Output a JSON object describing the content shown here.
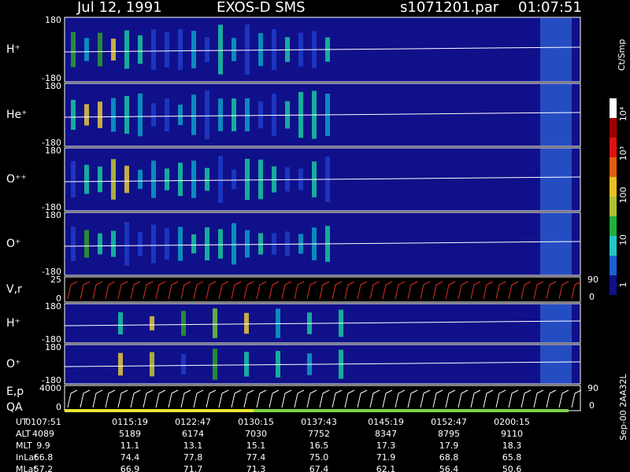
{
  "header": {
    "date": "Jul 12, 1991",
    "instrument": "EXOS-D SMS",
    "file": "s1071201.par",
    "time": "01:07:51"
  },
  "panels": [
    {
      "label": "H⁺",
      "top": "180",
      "bottom": "-180"
    },
    {
      "label": "He⁺",
      "top": "180",
      "bottom": "-180"
    },
    {
      "label": "O⁺⁺",
      "top": "180",
      "bottom": "-180"
    },
    {
      "label": "O⁺",
      "top": "180",
      "bottom": "-180"
    },
    {
      "label": "V,r",
      "top": "25",
      "bottom": "0",
      "right_top": "90",
      "right_bottom": "0"
    },
    {
      "label": "H⁺",
      "top": "180",
      "bottom": "-180"
    },
    {
      "label": "O⁺",
      "top": "180",
      "bottom": "-180"
    },
    {
      "label": "E,p",
      "label2": "QA",
      "top": "4000",
      "bottom": "0",
      "right_top": "90",
      "right_bottom": "0"
    }
  ],
  "colorbar": {
    "unit": "Ct/Smp",
    "labels": [
      "10⁴",
      "10³",
      "100",
      "10",
      "1"
    ]
  },
  "footer": {
    "rows": [
      {
        "label": "UT",
        "values": [
          "0107:51",
          "0115:19",
          "0122:47",
          "0130:15",
          "0137:43",
          "0145:19",
          "0152:47",
          "0200:15"
        ]
      },
      {
        "label": "ALT",
        "values": [
          "4089",
          "5189",
          "6174",
          "7030",
          "7752",
          "8347",
          "8795",
          "9110"
        ]
      },
      {
        "label": "MLT",
        "values": [
          "9.9",
          "11.1",
          "13.1",
          "15.1",
          "16.5",
          "17.3",
          "17.9",
          "18.3"
        ]
      },
      {
        "label": "InLat",
        "values": [
          "66.8",
          "74.4",
          "77.8",
          "77.4",
          "75.0",
          "71.9",
          "68.8",
          "65.8"
        ]
      },
      {
        "label": "MLat",
        "values": [
          "57.2",
          "66.9",
          "71.7",
          "71.3",
          "67.4",
          "62.1",
          "56.4",
          "50.6"
        ]
      }
    ]
  },
  "side_note": "Sep-00 2AA32L"
}
